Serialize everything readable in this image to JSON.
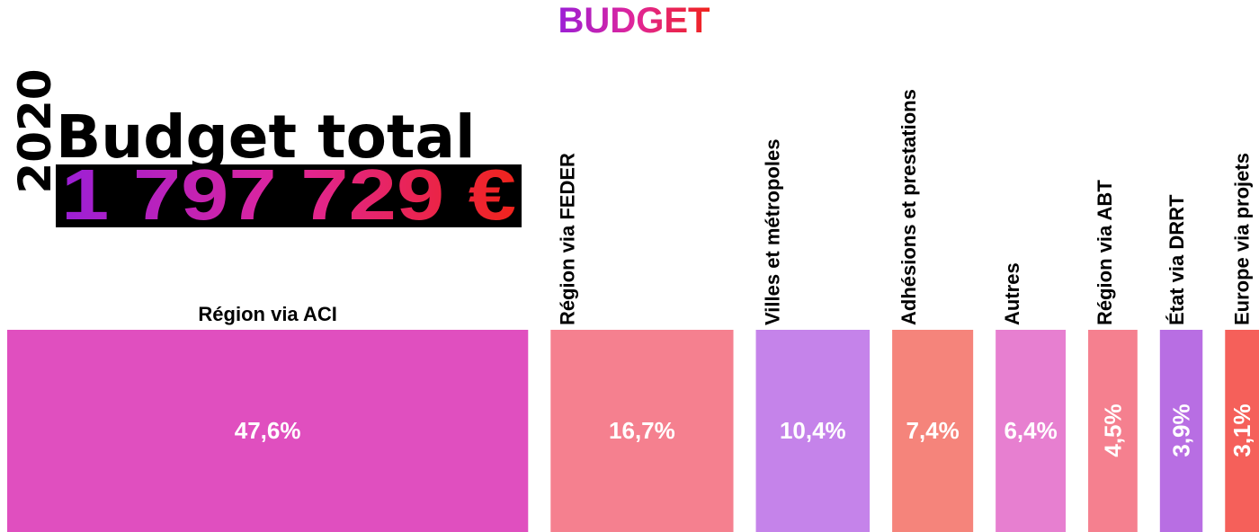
{
  "chart_data": {
    "type": "bar",
    "title": "BUDGET",
    "year": "2020",
    "subtitle": "Budget total",
    "total": "1 797 729 €",
    "categories": [
      "Région via ACI",
      "Région via FEDER",
      "Villes et métropoles",
      "Adhésions et prestations",
      "Autres",
      "Région via ABT",
      "État via DRRT",
      "Europe via projets"
    ],
    "values": [
      47.6,
      16.7,
      10.4,
      7.4,
      6.4,
      4.5,
      3.9,
      3.1
    ],
    "value_labels": [
      "47,6%",
      "16,7%",
      "10,4%",
      "7,4%",
      "6,4%",
      "4,5%",
      "3,9%",
      "3,1%"
    ],
    "colors": [
      "#e04fbf",
      "#f5808f",
      "#c583ea",
      "#f5847b",
      "#e77fd0",
      "#f5808f",
      "#b86ee3",
      "#f5605a"
    ]
  }
}
